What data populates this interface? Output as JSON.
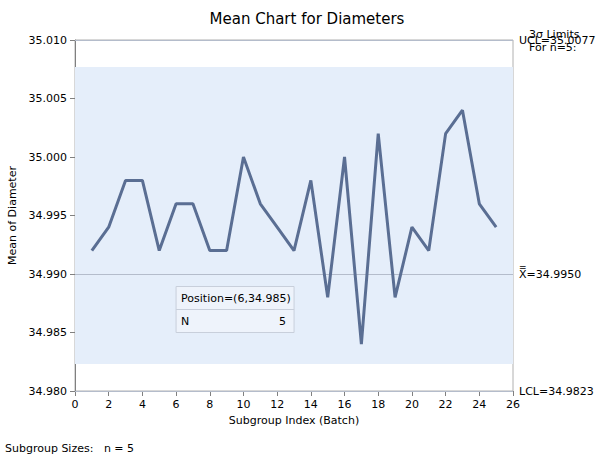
{
  "chart_data": {
    "type": "line",
    "title": "Mean Chart for Diameters",
    "x_label": "Subgroup Index (Batch)",
    "y_label": "Mean of Diameter",
    "x": [
      1,
      2,
      3,
      4,
      5,
      6,
      7,
      8,
      9,
      10,
      11,
      12,
      13,
      14,
      15,
      16,
      17,
      18,
      19,
      20,
      21,
      22,
      23,
      24,
      25
    ],
    "values": [
      34.992,
      34.994,
      34.998,
      34.998,
      34.992,
      34.996,
      34.996,
      34.992,
      34.992,
      35.0,
      34.996,
      34.994,
      34.992,
      34.998,
      34.988,
      35.0,
      34.984,
      35.002,
      34.988,
      34.994,
      34.992,
      35.002,
      35.004,
      34.996,
      34.994
    ],
    "color": "#5a6e93",
    "xlim": [
      0,
      26
    ],
    "xticks": [
      0,
      2,
      4,
      6,
      8,
      10,
      12,
      14,
      16,
      18,
      20,
      22,
      24,
      26
    ],
    "ylim": [
      34.98,
      35.01
    ],
    "yticks": [
      {
        "value": 34.98,
        "label": "34.980"
      },
      {
        "value": 34.985,
        "label": "34.985"
      },
      {
        "value": 34.99,
        "label": "34.990"
      },
      {
        "value": 34.995,
        "label": "34.995"
      },
      {
        "value": 35.0,
        "label": "35.000"
      },
      {
        "value": 35.005,
        "label": "35.005"
      },
      {
        "value": 35.01,
        "label": "35.010"
      }
    ],
    "control_limits": [
      {
        "value": 35.0077,
        "label": "UCL=35.0077"
      },
      {
        "value": 34.995,
        "label": "X̿=34.9950"
      },
      {
        "value": 34.9823,
        "label": "LCL=34.9823"
      }
    ],
    "limits_note": [
      "3σ Limits",
      "For n=5:"
    ],
    "footnote": "Subgroup Sizes:   n = 5",
    "inset": {
      "title": "Position=(6,34.985)",
      "x": 6,
      "y": 34.985,
      "rows": [
        [
          "N",
          "5"
        ]
      ]
    }
  }
}
